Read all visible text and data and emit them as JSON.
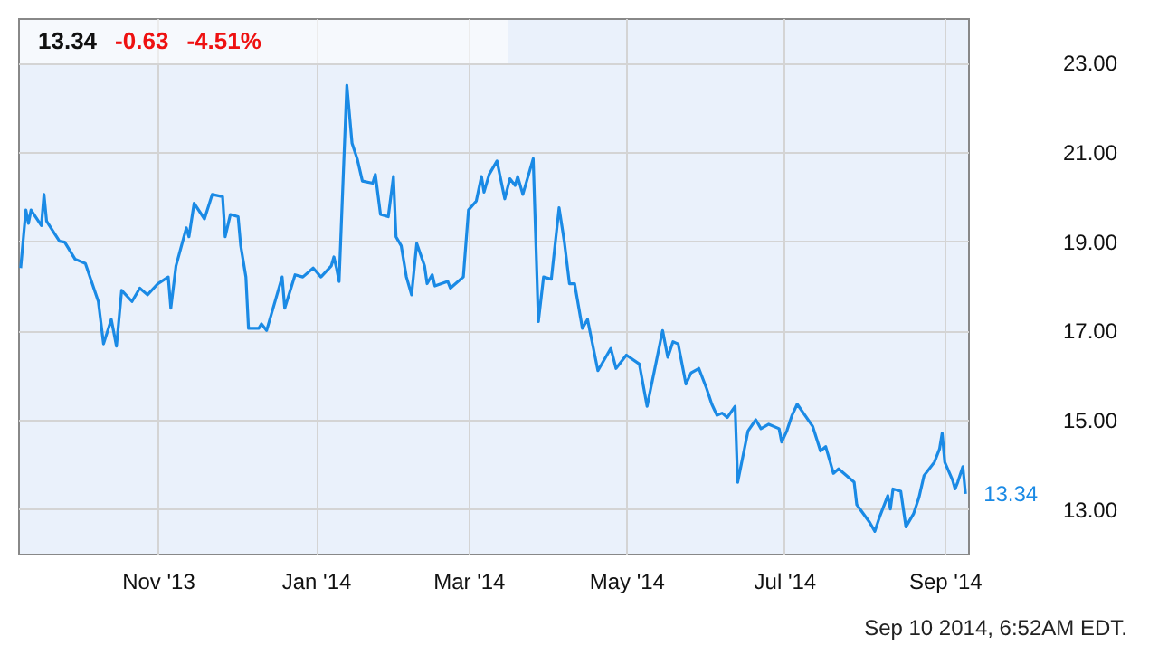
{
  "chart_data": {
    "type": "line",
    "annotations": [
      "13.34",
      "-0.63",
      "-4.51%",
      "Sep 10 2014, 6:52AM EDT.",
      {
        "text": "13.34",
        "x": "2014-09-09",
        "y": 13.34
      }
    ],
    "xlim": [
      "2013-09-08",
      "2014-09-10"
    ],
    "xticks": [
      {
        "value": "2013-11-01",
        "label": "Nov '13"
      },
      {
        "value": "2014-01-01",
        "label": "Jan '14"
      },
      {
        "value": "2014-03-01",
        "label": "Mar '14"
      },
      {
        "value": "2014-05-01",
        "label": "May '14"
      },
      {
        "value": "2014-07-01",
        "label": "Jul '14"
      },
      {
        "value": "2014-09-01",
        "label": "Sep '14"
      }
    ],
    "ylim": [
      12,
      24
    ],
    "yticks": [
      {
        "value": 13,
        "label": "13.00"
      },
      {
        "value": 15,
        "label": "15.00"
      },
      {
        "value": 17,
        "label": "17.00"
      },
      {
        "value": 19,
        "label": "19.00"
      },
      {
        "value": 21,
        "label": "21.00"
      },
      {
        "value": 23,
        "label": "23.00"
      }
    ],
    "grid": true,
    "marker": "none",
    "line_style": "solid",
    "x": [
      "2013-09-09",
      "2013-09-11",
      "2013-09-12",
      "2013-09-13",
      "2013-09-17",
      "2013-09-18",
      "2013-09-19",
      "2013-09-24",
      "2013-09-26",
      "2013-09-30",
      "2013-10-04",
      "2013-10-09",
      "2013-10-11",
      "2013-10-14",
      "2013-10-16",
      "2013-10-18",
      "2013-10-22",
      "2013-10-25",
      "2013-10-28",
      "2013-11-01",
      "2013-11-05",
      "2013-11-06",
      "2013-11-08",
      "2013-11-12",
      "2013-11-13",
      "2013-11-15",
      "2013-11-19",
      "2013-11-22",
      "2013-11-26",
      "2013-11-27",
      "2013-11-29",
      "2013-12-02",
      "2013-12-03",
      "2013-12-05",
      "2013-12-06",
      "2013-12-10",
      "2013-12-11",
      "2013-12-13",
      "2013-12-19",
      "2013-12-20",
      "2013-12-24",
      "2013-12-27",
      "2013-12-31",
      "2014-01-03",
      "2014-01-07",
      "2014-01-08",
      "2014-01-09",
      "2014-01-10",
      "2014-01-13",
      "2014-01-15",
      "2014-01-17",
      "2014-01-19",
      "2014-01-23",
      "2014-01-24",
      "2014-01-26",
      "2014-01-29",
      "2014-01-31",
      "2014-02-01",
      "2014-02-03",
      "2014-02-05",
      "2014-02-07",
      "2014-02-09",
      "2014-02-12",
      "2014-02-13",
      "2014-02-15",
      "2014-02-16",
      "2014-02-21",
      "2014-02-22",
      "2014-02-27",
      "2014-03-01",
      "2014-03-04",
      "2014-03-06",
      "2014-03-07",
      "2014-03-09",
      "2014-03-12",
      "2014-03-15",
      "2014-03-17",
      "2014-03-19",
      "2014-03-20",
      "2014-03-22",
      "2014-03-26",
      "2014-03-28",
      "2014-03-30",
      "2014-04-02",
      "2014-04-05",
      "2014-04-07",
      "2014-04-09",
      "2014-04-11",
      "2014-04-14",
      "2014-04-16",
      "2014-04-20",
      "2014-04-25",
      "2014-04-27",
      "2014-05-01",
      "2014-05-06",
      "2014-05-09",
      "2014-05-15",
      "2014-05-17",
      "2014-05-19",
      "2014-05-21",
      "2014-05-24",
      "2014-05-26",
      "2014-05-29",
      "2014-06-01",
      "2014-06-03",
      "2014-06-05",
      "2014-06-07",
      "2014-06-09",
      "2014-06-12",
      "2014-06-13",
      "2014-06-17",
      "2014-06-20",
      "2014-06-22",
      "2014-06-25",
      "2014-06-29",
      "2014-06-30",
      "2014-07-02",
      "2014-07-04",
      "2014-07-06",
      "2014-07-12",
      "2014-07-15",
      "2014-07-17",
      "2014-07-20",
      "2014-07-22",
      "2014-07-28",
      "2014-07-29",
      "2014-08-03",
      "2014-08-05",
      "2014-08-07",
      "2014-08-10",
      "2014-08-11",
      "2014-08-12",
      "2014-08-15",
      "2014-08-17",
      "2014-08-20",
      "2014-08-22",
      "2014-08-24",
      "2014-08-28",
      "2014-08-30",
      "2014-08-31",
      "2014-09-01",
      "2014-09-04",
      "2014-09-05",
      "2014-09-06",
      "2014-09-08",
      "2014-09-09"
    ],
    "series": [
      {
        "color": "#1a8ae5",
        "values": [
          18.4,
          19.7,
          19.4,
          19.7,
          19.35,
          20.05,
          19.45,
          19.0,
          18.98,
          18.6,
          18.5,
          17.65,
          16.7,
          17.25,
          16.65,
          17.9,
          17.65,
          17.95,
          17.8,
          18.05,
          18.2,
          17.5,
          18.45,
          19.3,
          19.1,
          19.85,
          19.5,
          20.05,
          20.0,
          19.1,
          19.6,
          19.55,
          18.9,
          18.2,
          17.05,
          17.05,
          17.15,
          17.0,
          18.2,
          17.5,
          18.25,
          18.2,
          18.4,
          18.2,
          18.45,
          18.65,
          18.4,
          18.1,
          22.5,
          21.2,
          20.85,
          20.35,
          20.3,
          20.5,
          19.6,
          19.55,
          20.45,
          19.1,
          18.9,
          18.2,
          17.8,
          18.95,
          18.45,
          18.05,
          18.25,
          18.0,
          18.1,
          17.95,
          18.2,
          19.7,
          19.9,
          20.45,
          20.1,
          20.5,
          20.8,
          19.95,
          20.4,
          20.25,
          20.45,
          20.05,
          20.85,
          17.2,
          18.2,
          18.15,
          19.75,
          19.0,
          18.05,
          18.05,
          17.05,
          17.25,
          16.1,
          16.6,
          16.15,
          16.45,
          16.25,
          15.3,
          17.0,
          16.4,
          16.75,
          16.7,
          15.8,
          16.05,
          16.15,
          15.7,
          15.35,
          15.1,
          15.15,
          15.05,
          15.3,
          13.6,
          14.75,
          15.0,
          14.8,
          14.9,
          14.8,
          14.5,
          14.75,
          15.1,
          15.35,
          14.85,
          14.3,
          14.4,
          13.8,
          13.9,
          13.6,
          13.1,
          12.7,
          12.5,
          12.85,
          13.3,
          13.0,
          13.45,
          13.4,
          12.6,
          12.9,
          13.25,
          13.75,
          14.05,
          14.35,
          14.7,
          14.05,
          13.65,
          13.45,
          13.6,
          13.95,
          13.34
        ]
      }
    ]
  }
}
